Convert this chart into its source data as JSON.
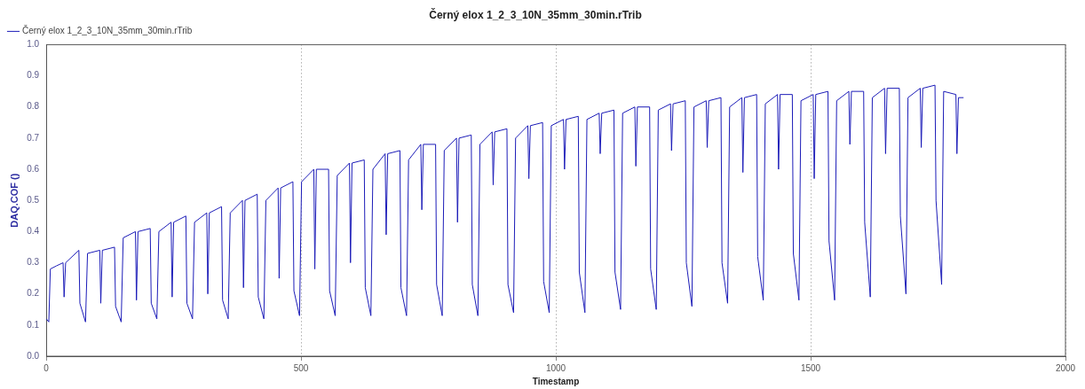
{
  "chart_data": {
    "type": "line",
    "title": "Černý elox 1_2_3_10N_35mm_30min.rTrib",
    "xlabel": "Timestamp",
    "ylabel": "DAQ.COF ()",
    "xlim": [
      0,
      2000
    ],
    "xticks": [
      0,
      500,
      1000,
      1500,
      2000
    ],
    "ylim": [
      0,
      1
    ],
    "yticks": [
      {
        "value": 0,
        "label": "0.0"
      },
      0.1,
      0.2,
      0.3,
      0.4,
      0.5,
      0.6,
      0.7,
      0.8,
      0.9,
      {
        "value": 1,
        "label": "1.0"
      }
    ],
    "grid": "x",
    "legend": "top left",
    "marker": "none",
    "line_style": "solid",
    "series": [
      {
        "name": "Černý elox 1_2_3_10N_35mm_30min.rTrib",
        "color": "#1c1cb8",
        "x": [
          0,
          5,
          8,
          20,
          33,
          35,
          38,
          64,
          66,
          77,
          81,
          105,
          107,
          110,
          134,
          136,
          147,
          151,
          175,
          177,
          180,
          204,
          206,
          217,
          221,
          245,
          247,
          250,
          274,
          276,
          287,
          291,
          315,
          317,
          320,
          344,
          346,
          357,
          361,
          385,
          387,
          390,
          414,
          416,
          427,
          431,
          455,
          457,
          460,
          484,
          486,
          497,
          501,
          525,
          527,
          530,
          554,
          556,
          567,
          571,
          595,
          597,
          600,
          624,
          626,
          637,
          641,
          665,
          667,
          670,
          694,
          696,
          707,
          711,
          735,
          737,
          740,
          764,
          766,
          777,
          781,
          805,
          807,
          810,
          834,
          836,
          847,
          851,
          875,
          877,
          880,
          904,
          906,
          917,
          921,
          945,
          947,
          950,
          974,
          976,
          987,
          991,
          1015,
          1017,
          1020,
          1044,
          1046,
          1057,
          1061,
          1085,
          1087,
          1090,
          1114,
          1116,
          1127,
          1131,
          1155,
          1157,
          1160,
          1184,
          1186,
          1197,
          1201,
          1225,
          1227,
          1230,
          1254,
          1256,
          1267,
          1271,
          1295,
          1297,
          1300,
          1324,
          1326,
          1337,
          1341,
          1365,
          1367,
          1370,
          1394,
          1396,
          1407,
          1411,
          1435,
          1437,
          1440,
          1464,
          1466,
          1477,
          1481,
          1505,
          1507,
          1510,
          1534,
          1536,
          1547,
          1551,
          1575,
          1577,
          1580,
          1604,
          1606,
          1617,
          1621,
          1645,
          1647,
          1650,
          1674,
          1676,
          1687,
          1691,
          1715,
          1717,
          1720,
          1744,
          1746,
          1757,
          1761,
          1785,
          1787,
          1790,
          1800
        ],
        "values": [
          0.12,
          0.11,
          0.28,
          0.29,
          0.3,
          0.19,
          0.3,
          0.34,
          0.17,
          0.11,
          0.33,
          0.34,
          0.17,
          0.34,
          0.35,
          0.16,
          0.11,
          0.38,
          0.4,
          0.18,
          0.4,
          0.41,
          0.17,
          0.12,
          0.4,
          0.43,
          0.19,
          0.43,
          0.45,
          0.17,
          0.12,
          0.43,
          0.46,
          0.2,
          0.46,
          0.48,
          0.18,
          0.12,
          0.46,
          0.5,
          0.22,
          0.5,
          0.52,
          0.19,
          0.12,
          0.5,
          0.54,
          0.25,
          0.54,
          0.56,
          0.21,
          0.13,
          0.56,
          0.6,
          0.28,
          0.6,
          0.6,
          0.21,
          0.13,
          0.58,
          0.62,
          0.3,
          0.62,
          0.63,
          0.22,
          0.13,
          0.6,
          0.65,
          0.39,
          0.65,
          0.66,
          0.22,
          0.13,
          0.63,
          0.68,
          0.47,
          0.68,
          0.68,
          0.23,
          0.13,
          0.66,
          0.7,
          0.43,
          0.7,
          0.71,
          0.23,
          0.13,
          0.68,
          0.72,
          0.55,
          0.72,
          0.73,
          0.23,
          0.14,
          0.7,
          0.74,
          0.57,
          0.74,
          0.75,
          0.24,
          0.14,
          0.74,
          0.76,
          0.6,
          0.76,
          0.77,
          0.27,
          0.14,
          0.76,
          0.78,
          0.65,
          0.78,
          0.79,
          0.27,
          0.15,
          0.78,
          0.8,
          0.61,
          0.8,
          0.8,
          0.28,
          0.15,
          0.79,
          0.81,
          0.66,
          0.81,
          0.82,
          0.3,
          0.16,
          0.8,
          0.82,
          0.67,
          0.82,
          0.83,
          0.3,
          0.17,
          0.8,
          0.83,
          0.59,
          0.83,
          0.84,
          0.32,
          0.18,
          0.81,
          0.84,
          0.6,
          0.84,
          0.84,
          0.33,
          0.18,
          0.82,
          0.84,
          0.57,
          0.84,
          0.85,
          0.37,
          0.18,
          0.82,
          0.85,
          0.68,
          0.85,
          0.85,
          0.43,
          0.19,
          0.83,
          0.86,
          0.65,
          0.86,
          0.86,
          0.45,
          0.2,
          0.83,
          0.86,
          0.67,
          0.86,
          0.87,
          0.5,
          0.23,
          0.85,
          0.84,
          0.65,
          0.83,
          0.83
        ]
      }
    ]
  }
}
